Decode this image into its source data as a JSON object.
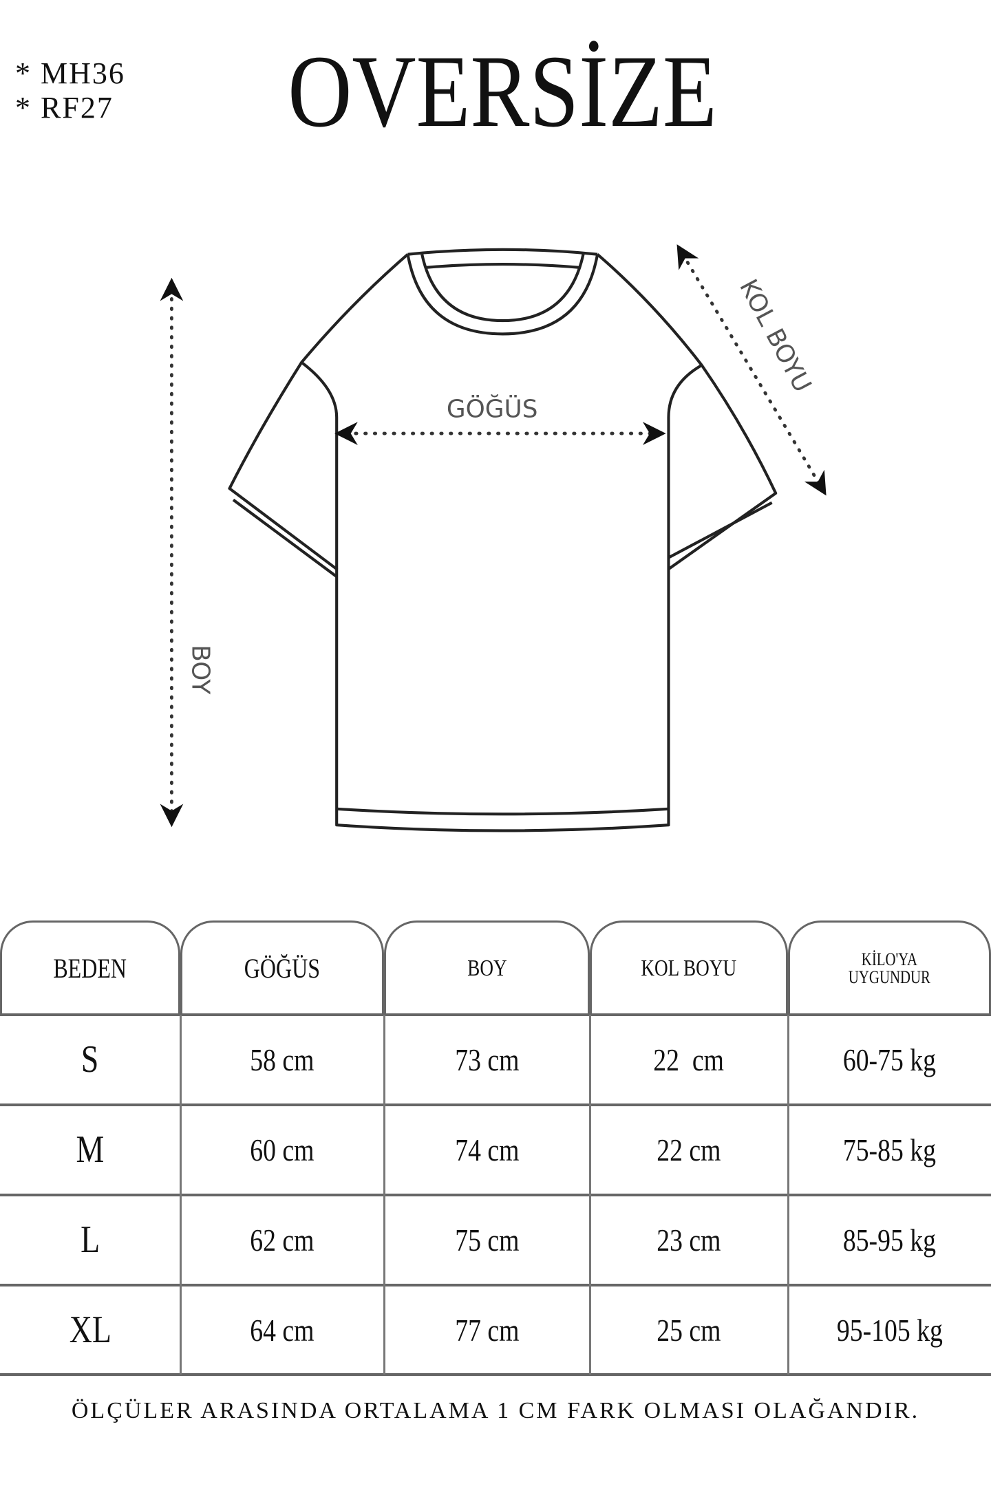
{
  "codes": [
    "* MH36",
    "* RF27"
  ],
  "title": "OVERSİZE",
  "diagram": {
    "labels": {
      "chest": "GÖĞÜS",
      "length": "BOY",
      "sleeve": "KOL BOYU"
    }
  },
  "table": {
    "headers": [
      "BEDEN",
      "GÖĞÜS",
      "BOY",
      "KOL BOYU",
      "KİLO'YA",
      "UYGUNDUR"
    ],
    "rows": [
      [
        "S",
        "58 cm",
        "73 cm",
        "22  cm",
        "60-75 kg"
      ],
      [
        "M",
        "60 cm",
        "74 cm",
        "22 cm",
        "75-85 kg"
      ],
      [
        "L",
        "62 cm",
        "75 cm",
        "23 cm",
        "85-95 kg"
      ],
      [
        "XL",
        "64 cm",
        "77 cm",
        "25 cm",
        "95-105 kg"
      ]
    ]
  },
  "footer": "ÖLÇÜLER ARASINDA ORTALAMA 1 CM FARK OLMASI OLAĞANDIR."
}
